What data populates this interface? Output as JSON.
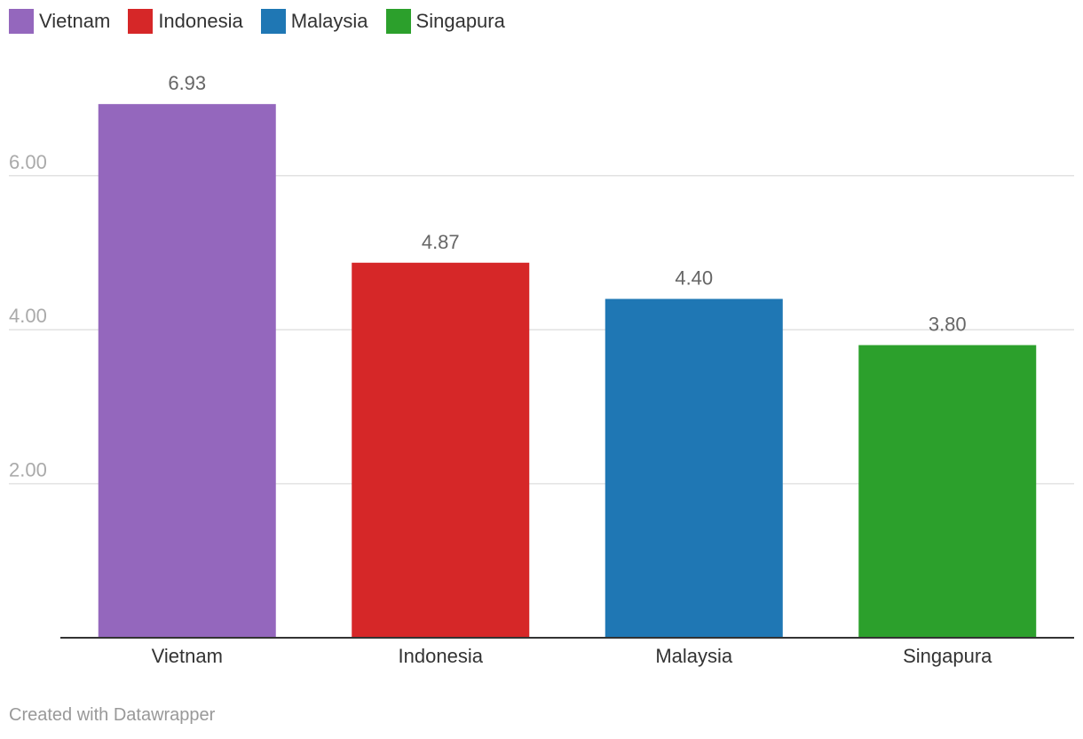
{
  "chart_data": {
    "type": "bar",
    "categories": [
      "Vietnam",
      "Indonesia",
      "Malaysia",
      "Singapura"
    ],
    "values": [
      6.93,
      4.87,
      4.4,
      3.8
    ],
    "value_labels": [
      "6.93",
      "4.87",
      "4.40",
      "3.80"
    ],
    "colors": [
      "#9467bd",
      "#d62728",
      "#1f77b4",
      "#2ca02c"
    ],
    "legend": [
      {
        "label": "Vietnam",
        "color": "#9467bd"
      },
      {
        "label": "Indonesia",
        "color": "#d62728"
      },
      {
        "label": "Malaysia",
        "color": "#1f77b4"
      },
      {
        "label": "Singapura",
        "color": "#2ca02c"
      }
    ],
    "legend_position": "top-left",
    "y_ticks": [
      2,
      4,
      6
    ],
    "y_tick_labels": [
      "2.00",
      "4.00",
      "6.00"
    ],
    "ylim": [
      0,
      7.5
    ],
    "grid": true,
    "title": "",
    "xlabel": "",
    "ylabel": ""
  },
  "footer": {
    "credit": "Created with Datawrapper"
  }
}
